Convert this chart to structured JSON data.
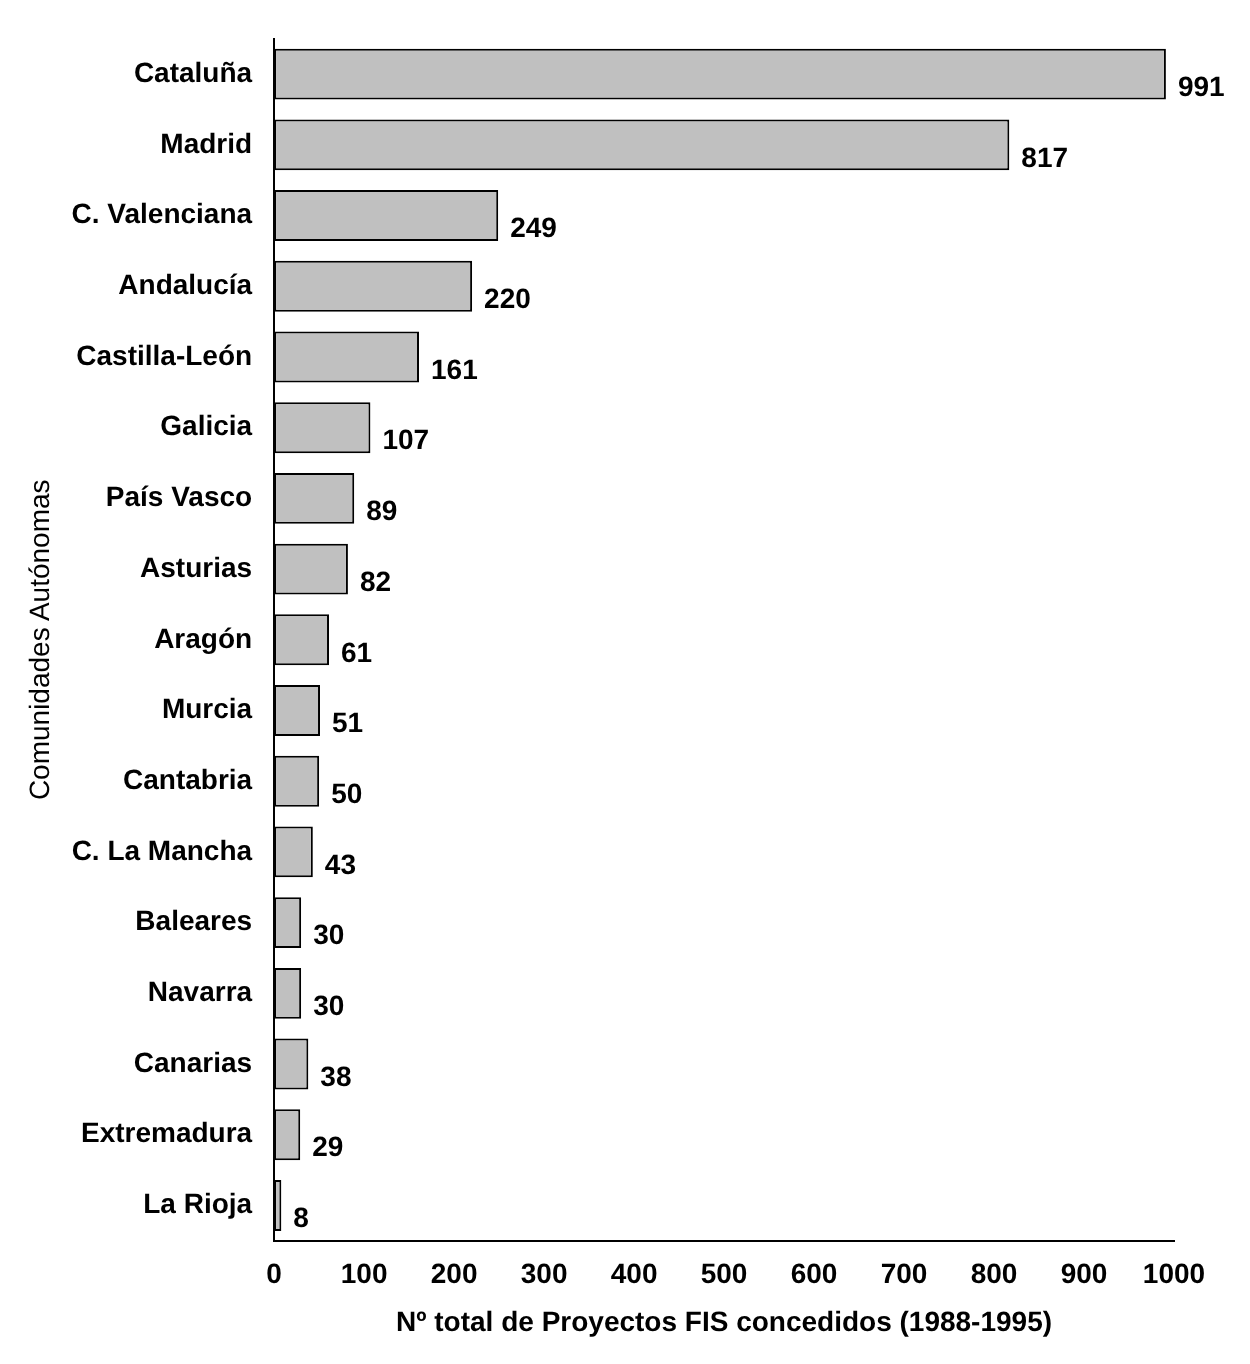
{
  "chart_data": {
    "type": "bar",
    "orientation": "horizontal",
    "xlabel": "Nº total de Proyectos FIS concedidos (1988-1995)",
    "ylabel": "Comunidades Autónomas",
    "categories": [
      "Cataluña",
      "Madrid",
      "C. Valenciana",
      "Andalucía",
      "Castilla-León",
      "Galicia",
      "País Vasco",
      "Asturias",
      "Aragón",
      "Murcia",
      "Cantabria",
      "C. La Mancha",
      "Baleares",
      "Navarra",
      "Canarias",
      "Extremadura",
      "La Rioja"
    ],
    "values": [
      991,
      817,
      249,
      220,
      161,
      107,
      89,
      82,
      61,
      51,
      50,
      43,
      30,
      30,
      38,
      29,
      8
    ],
    "color": "#c0c0c0",
    "xlim": [
      0,
      1000
    ],
    "xticks": [
      0,
      100,
      200,
      300,
      400,
      500,
      600,
      700,
      800,
      900,
      1000
    ],
    "grid": false,
    "legend": false,
    "data_labels": true
  }
}
